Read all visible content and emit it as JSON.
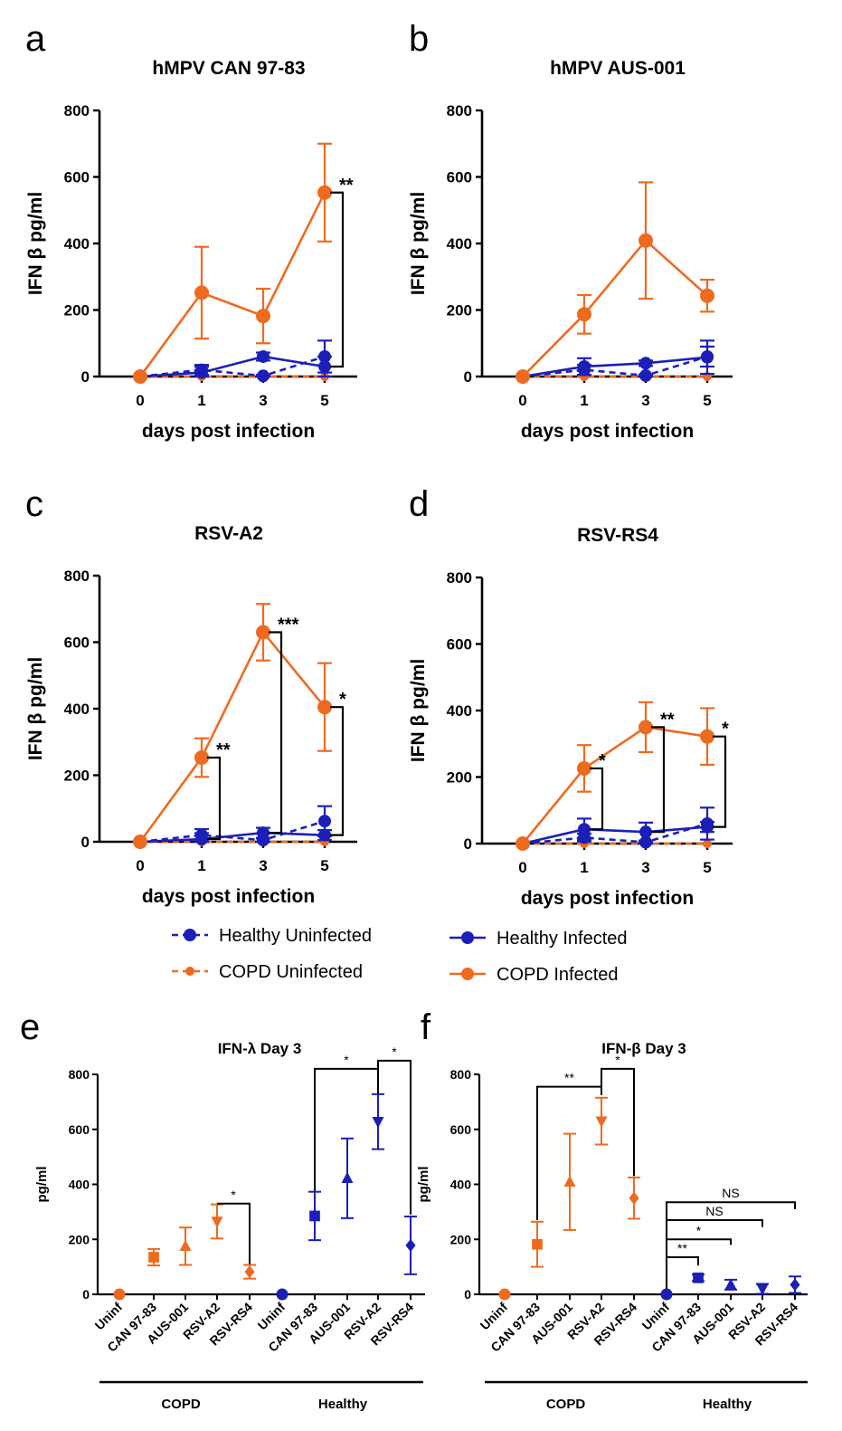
{
  "colors": {
    "orange": "#EE6A1F",
    "blue": "#1B1FB8",
    "black": "#000000"
  },
  "legend": [
    {
      "label": "Healthy Uninfected",
      "color": "#1B1FB8",
      "style": "dashed"
    },
    {
      "label": "COPD Uninfected",
      "color": "#EE6A1F",
      "style": "dashed"
    },
    {
      "label": "Healthy Infected",
      "color": "#1B1FB8",
      "style": "solid"
    },
    {
      "label": "COPD Infected",
      "color": "#EE6A1F",
      "style": "solid"
    }
  ],
  "chart_data": [
    {
      "id": "a",
      "panel_label": "a",
      "type": "line",
      "title": "hMPV CAN 97-83",
      "xlabel": "days post infection",
      "ylabel": "IFN β pg/ml",
      "x": [
        0,
        1,
        3,
        5
      ],
      "x_ticks": [
        "0",
        "1",
        "3",
        "5"
      ],
      "ylim": [
        0,
        800
      ],
      "y_ticks": [
        "0",
        "200",
        "400",
        "600",
        "800"
      ],
      "series": [
        {
          "name": "COPD Infected",
          "color": "#EE6A1F",
          "style": "solid",
          "values": [
            0,
            252,
            182,
            553
          ],
          "err": [
            0,
            138,
            82,
            147
          ]
        },
        {
          "name": "Healthy Infected",
          "color": "#1B1FB8",
          "style": "solid",
          "values": [
            0,
            12,
            60,
            30
          ],
          "err": [
            0,
            18,
            12,
            30
          ]
        },
        {
          "name": "Healthy Uninfected",
          "color": "#1B1FB8",
          "style": "dashed",
          "values": [
            0,
            20,
            2,
            60
          ],
          "err": [
            0,
            15,
            3,
            48
          ]
        },
        {
          "name": "COPD Uninfected",
          "color": "#EE6A1F",
          "style": "dashed",
          "values": [
            0,
            0,
            0,
            0
          ],
          "err": [
            0,
            0,
            0,
            0
          ]
        }
      ],
      "brackets": [
        {
          "label": "**",
          "top": 553,
          "bottom": 30,
          "after": 5
        }
      ]
    },
    {
      "id": "b",
      "panel_label": "b",
      "type": "line",
      "title": "hMPV AUS-001",
      "xlabel": "days post infection",
      "ylabel": "IFN β pg/ml",
      "x": [
        0,
        1,
        3,
        5
      ],
      "x_ticks": [
        "0",
        "1",
        "3",
        "5"
      ],
      "ylim": [
        0,
        800
      ],
      "y_ticks": [
        "0",
        "200",
        "400",
        "600",
        "800"
      ],
      "series": [
        {
          "name": "COPD Infected",
          "color": "#EE6A1F",
          "style": "solid",
          "values": [
            0,
            187,
            409,
            243
          ],
          "err": [
            0,
            58,
            175,
            48
          ]
        },
        {
          "name": "Healthy Infected",
          "color": "#1B1FB8",
          "style": "solid",
          "values": [
            0,
            30,
            40,
            58
          ],
          "err": [
            0,
            25,
            8,
            50
          ]
        },
        {
          "name": "Healthy Uninfected",
          "color": "#1B1FB8",
          "style": "dashed",
          "values": [
            0,
            20,
            3,
            60
          ],
          "err": [
            0,
            15,
            3,
            30
          ]
        },
        {
          "name": "COPD Uninfected",
          "color": "#EE6A1F",
          "style": "dashed",
          "values": [
            0,
            0,
            0,
            0
          ],
          "err": [
            0,
            0,
            0,
            0
          ]
        }
      ],
      "brackets": []
    },
    {
      "id": "c",
      "panel_label": "c",
      "type": "line",
      "title": "RSV-A2",
      "xlabel": "days post infection",
      "ylabel": "IFN β pg/ml",
      "x": [
        0,
        1,
        3,
        5
      ],
      "x_ticks": [
        "0",
        "1",
        "3",
        "5"
      ],
      "ylim": [
        0,
        800
      ],
      "y_ticks": [
        "0",
        "200",
        "400",
        "600",
        "800"
      ],
      "series": [
        {
          "name": "COPD Infected",
          "color": "#EE6A1F",
          "style": "solid",
          "values": [
            0,
            253,
            630,
            405
          ],
          "err": [
            0,
            58,
            85,
            132
          ]
        },
        {
          "name": "Healthy Infected",
          "color": "#1B1FB8",
          "style": "solid",
          "values": [
            0,
            8,
            27,
            20
          ],
          "err": [
            0,
            18,
            15,
            15
          ]
        },
        {
          "name": "Healthy Uninfected",
          "color": "#1B1FB8",
          "style": "dashed",
          "values": [
            0,
            20,
            5,
            62
          ],
          "err": [
            0,
            18,
            5,
            45
          ]
        },
        {
          "name": "COPD Uninfected",
          "color": "#EE6A1F",
          "style": "dashed",
          "values": [
            0,
            0,
            0,
            0
          ],
          "err": [
            0,
            0,
            0,
            0
          ]
        }
      ],
      "brackets": [
        {
          "label": "**",
          "top": 253,
          "bottom": 8,
          "after": 1
        },
        {
          "label": "***",
          "top": 630,
          "bottom": 27,
          "after": 3
        },
        {
          "label": "*",
          "top": 405,
          "bottom": 20,
          "after": 5
        }
      ]
    },
    {
      "id": "d",
      "panel_label": "d",
      "type": "line",
      "title": "RSV-RS4",
      "xlabel": "days post infection",
      "ylabel": "IFN β pg/ml",
      "x": [
        0,
        1,
        3,
        5
      ],
      "x_ticks": [
        "0",
        "1",
        "3",
        "5"
      ],
      "ylim": [
        0,
        800
      ],
      "y_ticks": [
        "0",
        "200",
        "400",
        "600",
        "800"
      ],
      "series": [
        {
          "name": "COPD Infected",
          "color": "#EE6A1F",
          "style": "solid",
          "values": [
            0,
            226,
            350,
            322
          ],
          "err": [
            0,
            70,
            75,
            85
          ]
        },
        {
          "name": "Healthy Infected",
          "color": "#1B1FB8",
          "style": "solid",
          "values": [
            0,
            43,
            35,
            50
          ],
          "err": [
            0,
            32,
            28,
            15
          ]
        },
        {
          "name": "Healthy Uninfected",
          "color": "#1B1FB8",
          "style": "dashed",
          "values": [
            0,
            18,
            4,
            60
          ],
          "err": [
            0,
            12,
            5,
            48
          ]
        },
        {
          "name": "COPD Uninfected",
          "color": "#EE6A1F",
          "style": "dashed",
          "values": [
            0,
            0,
            0,
            0
          ],
          "err": [
            0,
            0,
            0,
            0
          ]
        }
      ],
      "brackets": [
        {
          "label": "*",
          "top": 226,
          "bottom": 43,
          "after": 1
        },
        {
          "label": "**",
          "top": 350,
          "bottom": 35,
          "after": 3
        },
        {
          "label": "*",
          "top": 322,
          "bottom": 50,
          "after": 5
        }
      ]
    },
    {
      "id": "e",
      "panel_label": "e",
      "type": "scatter",
      "title": "IFN-λ Day 3",
      "ylabel": "pg/ml",
      "ylim": [
        0,
        800
      ],
      "y_ticks": [
        "0",
        "200",
        "400",
        "600",
        "800"
      ],
      "categories": [
        "Uninf",
        "CAN 97-83",
        "AUS-001",
        "RSV-A2",
        "RSV-RS4",
        "Uninf",
        "CAN 97-83",
        "AUS-001",
        "RSV-A2",
        "RSV-RS4"
      ],
      "groups": [
        {
          "label": "COPD",
          "from": 0,
          "to": 4
        },
        {
          "label": "Healthy",
          "from": 5,
          "to": 9
        }
      ],
      "points": [
        {
          "value": 0,
          "err": 0,
          "marker": "circle",
          "color": "#EE6A1F"
        },
        {
          "value": 135,
          "err": 30,
          "marker": "square",
          "color": "#EE6A1F"
        },
        {
          "value": 175,
          "err": 68,
          "marker": "triangle",
          "color": "#EE6A1F"
        },
        {
          "value": 265,
          "err": 62,
          "marker": "triangle-down",
          "color": "#EE6A1F"
        },
        {
          "value": 82,
          "err": 25,
          "marker": "diamond",
          "color": "#EE6A1F"
        },
        {
          "value": 0,
          "err": 0,
          "marker": "circle",
          "color": "#1B1FB8"
        },
        {
          "value": 285,
          "err": 88,
          "marker": "square",
          "color": "#1B1FB8"
        },
        {
          "value": 422,
          "err": 145,
          "marker": "triangle",
          "color": "#1B1FB8"
        },
        {
          "value": 628,
          "err": 100,
          "marker": "triangle-down",
          "color": "#1B1FB8"
        },
        {
          "value": 178,
          "err": 105,
          "marker": "diamond",
          "color": "#1B1FB8"
        }
      ],
      "brackets": [
        {
          "label": "*",
          "from": 3,
          "to": 4,
          "level": 330,
          "drop_from": 330,
          "drop_to": 110
        },
        {
          "label": "*",
          "from": 6,
          "to": 8,
          "level": 820,
          "drop_from": 375,
          "drop_to": 730
        },
        {
          "label": "*",
          "from": 8,
          "to": 9,
          "level": 850,
          "drop_from": 730,
          "drop_to": 290
        }
      ]
    },
    {
      "id": "f",
      "panel_label": "f",
      "type": "scatter",
      "title": "IFN-β Day 3",
      "ylabel": "pg/ml",
      "ylim": [
        0,
        800
      ],
      "y_ticks": [
        "0",
        "200",
        "400",
        "600",
        "800"
      ],
      "categories": [
        "Uninf",
        "CAN 97-83",
        "AUS-001",
        "RSV-A2",
        "RSV-RS4",
        "Uninf",
        "CAN 97-83",
        "AUS-001",
        "RSV-A2",
        "RSV-RS4"
      ],
      "groups": [
        {
          "label": "COPD",
          "from": 0,
          "to": 4
        },
        {
          "label": "Healthy",
          "from": 5,
          "to": 9
        }
      ],
      "points": [
        {
          "value": 0,
          "err": 0,
          "marker": "circle",
          "color": "#EE6A1F"
        },
        {
          "value": 182,
          "err": 82,
          "marker": "square",
          "color": "#EE6A1F"
        },
        {
          "value": 409,
          "err": 175,
          "marker": "triangle",
          "color": "#EE6A1F"
        },
        {
          "value": 630,
          "err": 85,
          "marker": "triangle-down",
          "color": "#EE6A1F"
        },
        {
          "value": 350,
          "err": 75,
          "marker": "diamond",
          "color": "#EE6A1F"
        },
        {
          "value": 0,
          "err": 0,
          "marker": "circle",
          "color": "#1B1FB8"
        },
        {
          "value": 60,
          "err": 12,
          "marker": "square",
          "color": "#1B1FB8"
        },
        {
          "value": 35,
          "err": 18,
          "marker": "triangle",
          "color": "#1B1FB8"
        },
        {
          "value": 20,
          "err": 18,
          "marker": "triangle-down",
          "color": "#1B1FB8"
        },
        {
          "value": 35,
          "err": 30,
          "marker": "diamond",
          "color": "#1B1FB8"
        }
      ],
      "brackets": [
        {
          "label": "**",
          "from": 1,
          "to": 3,
          "level": 755,
          "drop_from": 270,
          "drop_to": 725
        },
        {
          "label": "*",
          "from": 3,
          "to": 4,
          "level": 820,
          "drop_from": 725,
          "drop_to": 430
        },
        {
          "label": "NS",
          "from": 5,
          "to": 9,
          "level": 335,
          "drop_from": 20,
          "drop_to": 310
        },
        {
          "label": "NS",
          "from": 5,
          "to": 8,
          "level": 270,
          "drop_from": 20,
          "drop_to": 245
        },
        {
          "label": "*",
          "from": 5,
          "to": 7,
          "level": 200,
          "drop_from": 20,
          "drop_to": 180
        },
        {
          "label": "**",
          "from": 5,
          "to": 6,
          "level": 135,
          "drop_from": 20,
          "drop_to": 105
        }
      ]
    }
  ]
}
